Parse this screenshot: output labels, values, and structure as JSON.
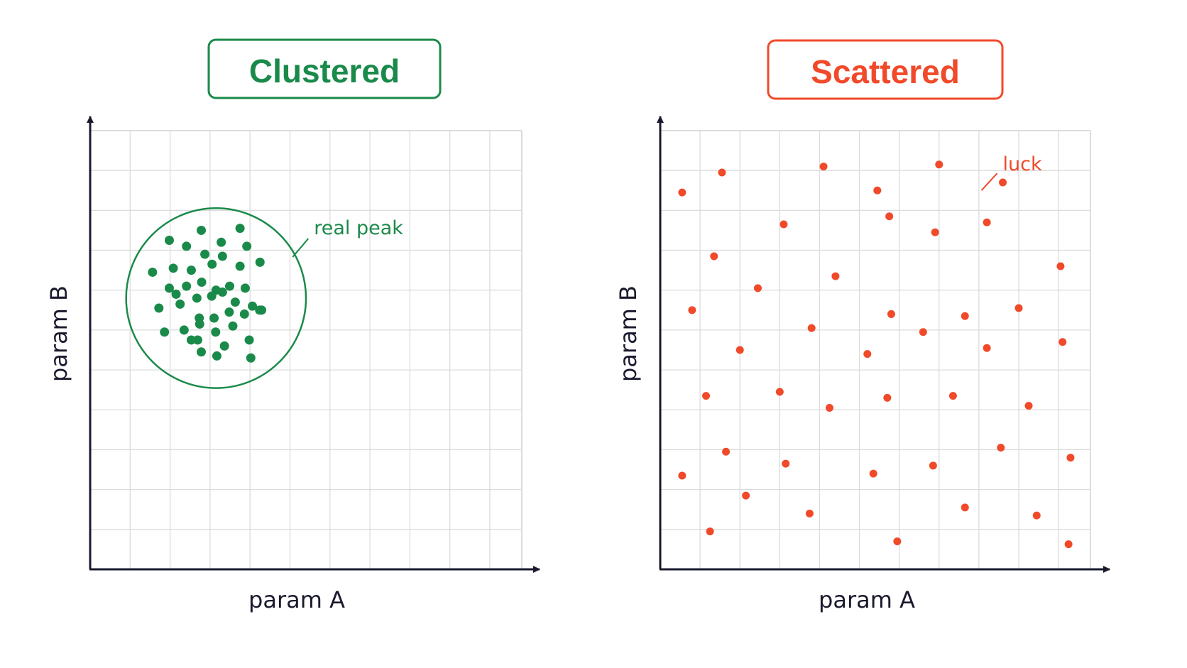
{
  "colors": {
    "clustered": "#1a8a4a",
    "scattered": "#f04a2a",
    "axis": "#1a1a2e",
    "grid": "#dcdcdc",
    "background": "#ffffff"
  },
  "chart_data": [
    {
      "type": "scatter",
      "title": "Clustered",
      "xlabel": "param A",
      "ylabel": "param B",
      "xlim": [
        0,
        10.8
      ],
      "ylim": [
        0,
        11
      ],
      "grid": true,
      "annotation": {
        "text": "real peak",
        "x": 5.6,
        "y": 8.4
      },
      "region": {
        "shape": "circle",
        "cx": 3.15,
        "cy": 6.8,
        "r": 2.25
      },
      "series": [
        {
          "x": [
            2.78,
            3.75,
            1.98,
            2.41,
            3.28,
            3.92,
            2.87,
            3.31,
            1.56,
            2.08,
            2.53,
            3.05,
            3.75,
            4.25,
            1.98,
            2.41,
            2.79,
            3.15,
            3.49,
            3.88,
            1.72,
            2.25,
            2.67,
            3.04,
            3.31,
            3.63,
            4.06,
            4.29,
            2.15,
            2.73,
            3.1,
            3.48,
            3.86,
            4.24,
            1.86,
            2.35,
            2.74,
            3.14,
            3.57,
            3.98,
            2.78,
            3.17,
            2.69,
            4.02,
            2.53,
            3.36
          ],
          "y": [
            8.5,
            8.55,
            8.25,
            8.1,
            8.2,
            8.1,
            7.9,
            7.85,
            7.45,
            7.55,
            7.5,
            7.65,
            7.6,
            7.7,
            7.05,
            7.1,
            7.2,
            7.0,
            7.1,
            7.05,
            6.55,
            6.65,
            6.8,
            6.85,
            6.95,
            6.7,
            6.6,
            6.5,
            6.9,
            6.3,
            6.3,
            6.45,
            6.4,
            6.5,
            5.95,
            6.0,
            6.15,
            5.95,
            6.1,
            5.75,
            5.45,
            5.35,
            5.75,
            5.3,
            5.75,
            5.6
          ]
        }
      ]
    },
    {
      "type": "scatter",
      "title": "Scattered",
      "xlabel": "param A",
      "ylabel": "param B",
      "xlim": [
        0,
        10.8
      ],
      "ylim": [
        0,
        11
      ],
      "grid": true,
      "annotation": {
        "text": "luck",
        "x": 8.6,
        "y": 10.0
      },
      "series": [
        {
          "x": [
            0.55,
            1.55,
            4.1,
            5.45,
            7.0,
            8.6,
            1.35,
            3.1,
            5.75,
            6.9,
            8.2,
            10.05,
            2.45,
            4.4,
            0.8,
            5.8,
            7.65,
            9.0,
            3.8,
            6.6,
            2.0,
            5.2,
            8.2,
            10.1,
            1.15,
            3.0,
            4.25,
            5.7,
            7.35,
            9.25,
            1.65,
            3.15,
            5.35,
            6.85,
            8.55,
            10.3,
            0.55,
            2.15,
            3.75,
            7.65,
            9.45,
            1.25,
            5.95,
            10.25
          ],
          "y": [
            9.45,
            9.95,
            10.1,
            9.5,
            10.15,
            9.7,
            7.85,
            8.65,
            8.85,
            8.45,
            8.7,
            7.6,
            7.05,
            7.35,
            6.5,
            6.4,
            6.35,
            6.55,
            6.05,
            5.95,
            5.5,
            5.4,
            5.55,
            5.7,
            4.35,
            4.45,
            4.05,
            4.3,
            4.35,
            4.1,
            2.95,
            2.65,
            2.4,
            2.6,
            3.05,
            2.8,
            2.35,
            1.85,
            1.4,
            1.55,
            1.35,
            0.95,
            0.7,
            0.63
          ]
        }
      ]
    }
  ]
}
